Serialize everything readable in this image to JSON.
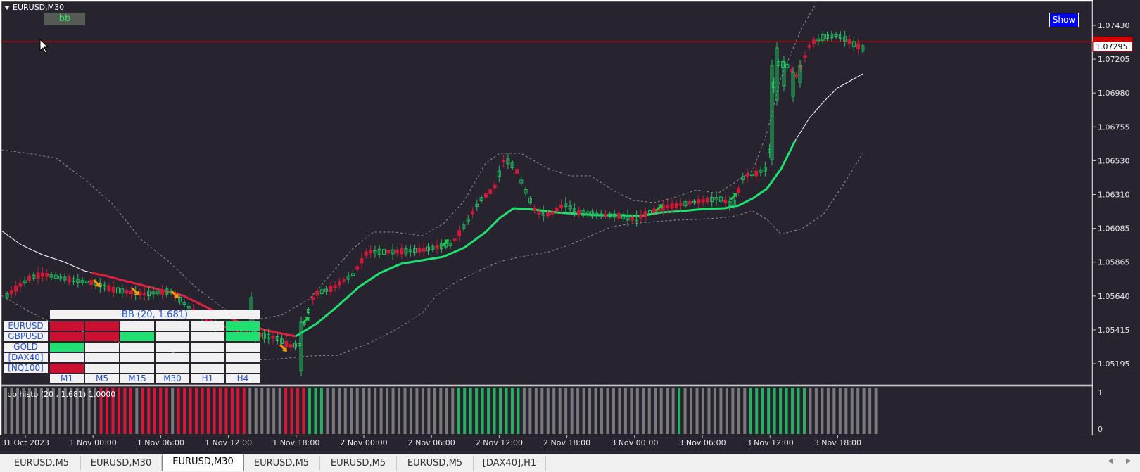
{
  "window": {
    "symbol_title": "EURUSD,M30"
  },
  "buttons": {
    "bb_label": "bb",
    "show_label": "Show"
  },
  "price_axis": {
    "labels": [
      "1.07430",
      "1.07205",
      "1.06980",
      "1.06755",
      "1.06530",
      "1.06310",
      "1.06085",
      "1.05865",
      "1.05640",
      "1.05415",
      "1.05195"
    ],
    "current_price": "1.07295",
    "line_color": "#d40000"
  },
  "time_axis": {
    "labels": [
      "31 Oct 2023",
      "1 Nov 00:00",
      "1 Nov 06:00",
      "1 Nov 12:00",
      "1 Nov 18:00",
      "2 Nov 00:00",
      "2 Nov 06:00",
      "2 Nov 12:00",
      "2 Nov 18:00",
      "3 Nov 00:00",
      "3 Nov 06:00",
      "3 Nov 12:00",
      "3 Nov 18:00"
    ]
  },
  "dashboard": {
    "title": "BB (20, 1.681)",
    "symbols": [
      "EURUSD",
      "GBPUSD",
      "GOLD",
      "[DAX40]",
      "[NQ100]"
    ],
    "timeframes": [
      "M1",
      "M5",
      "M15",
      "M30",
      "H1",
      "H4"
    ],
    "cells": [
      [
        "red",
        "red",
        "blank",
        "blank",
        "blank",
        "green"
      ],
      [
        "red",
        "red",
        "green",
        "blank",
        "blank",
        "green"
      ],
      [
        "green",
        "blank",
        "blank",
        "blank",
        "blank",
        "blank"
      ],
      [
        "blank",
        "blank",
        "blank",
        "blank",
        "blank",
        "blank"
      ],
      [
        "red",
        "blank",
        "blank",
        "blank",
        "blank",
        "blank"
      ]
    ],
    "colors": {
      "red": "#cc1030",
      "green": "#1fe070",
      "blank": "#f0f0f0"
    }
  },
  "indicator": {
    "title": "bb histo (20 , 1.681) 1.0000",
    "scale_top": "1",
    "scale_bottom": "0",
    "segments": [
      {
        "color": "gray",
        "count": 16
      },
      {
        "color": "red",
        "count": 6
      },
      {
        "color": "gray",
        "count": 1
      },
      {
        "color": "red",
        "count": 5
      },
      {
        "color": "gray",
        "count": 1
      },
      {
        "color": "red",
        "count": 12
      },
      {
        "color": "gray",
        "count": 6
      },
      {
        "color": "red",
        "count": 4
      },
      {
        "color": "green",
        "count": 3
      },
      {
        "color": "gray",
        "count": 22
      },
      {
        "color": "green",
        "count": 11
      },
      {
        "color": "gray",
        "count": 26
      },
      {
        "color": "green",
        "count": 1
      },
      {
        "color": "gray",
        "count": 11
      },
      {
        "color": "green",
        "count": 10
      },
      {
        "color": "gray",
        "count": 12
      }
    ],
    "colors": {
      "gray": "#7a7a7a",
      "red": "#d81838",
      "green": "#27b060"
    }
  },
  "tabs": [
    {
      "label": "EURUSD,M5"
    },
    {
      "label": "EURUSD,M30"
    },
    {
      "label": "EURUSD,M30",
      "active": true
    },
    {
      "label": "EURUSD,M5"
    },
    {
      "label": "EURUSD,M5"
    },
    {
      "label": "EURUSD,M5"
    },
    {
      "label": "[DAX40],H1"
    }
  ],
  "colors": {
    "chart_bg": "#27242f",
    "bull": "#1fc060",
    "bear": "#d01838",
    "ma_down": "#dc2040",
    "ma_up": "#20e070",
    "arrow_up": "#18c848",
    "arrow_down": "#ff9a00"
  }
}
